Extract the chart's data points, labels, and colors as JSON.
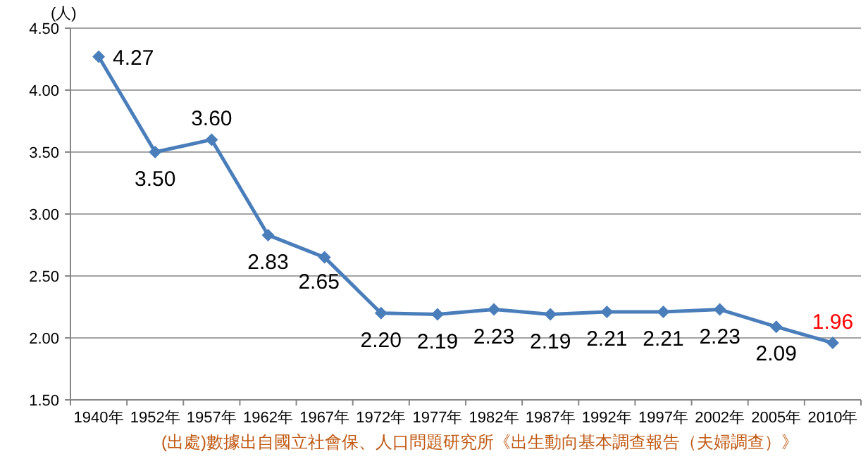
{
  "chart_data": {
    "type": "line",
    "ylabel": "(人)",
    "categories": [
      "1940年",
      "1952年",
      "1957年",
      "1962年",
      "1967年",
      "1972年",
      "1977年",
      "1982年",
      "1987年",
      "1992年",
      "1997年",
      "2002年",
      "2005年",
      "2010年"
    ],
    "series": [
      {
        "color": "#4a7ebb",
        "values": [
          4.27,
          3.5,
          3.6,
          2.83,
          2.65,
          2.2,
          2.19,
          2.23,
          2.19,
          2.21,
          2.21,
          2.23,
          2.09,
          1.96
        ],
        "value_labels": [
          "4.27",
          "3.50",
          "3.60",
          "2.83",
          "2.65",
          "2.20",
          "2.19",
          "2.23",
          "2.19",
          "2.21",
          "2.21",
          "2.23",
          "2.09",
          null
        ]
      }
    ],
    "ylim": [
      1.5,
      4.5
    ],
    "yticks": [
      {
        "value": 1.5,
        "label": "1.50"
      },
      {
        "value": 2.0,
        "label": "2.00"
      },
      {
        "value": 2.5,
        "label": "2.50"
      },
      {
        "value": 3.0,
        "label": "3.00"
      },
      {
        "value": 3.5,
        "label": "3.50"
      },
      {
        "value": 4.0,
        "label": "4.00"
      },
      {
        "value": 4.5,
        "label": "4.50"
      }
    ],
    "grid": "y",
    "marker": "diamond",
    "line_style": "solid",
    "annotations": [
      {
        "text": "1.96",
        "x": "2010年",
        "y": 1.96
      },
      "(出處)數據出自國立社會保、人口問題研究所《出生動向基本調查報告（夫婦調查）》"
    ]
  }
}
